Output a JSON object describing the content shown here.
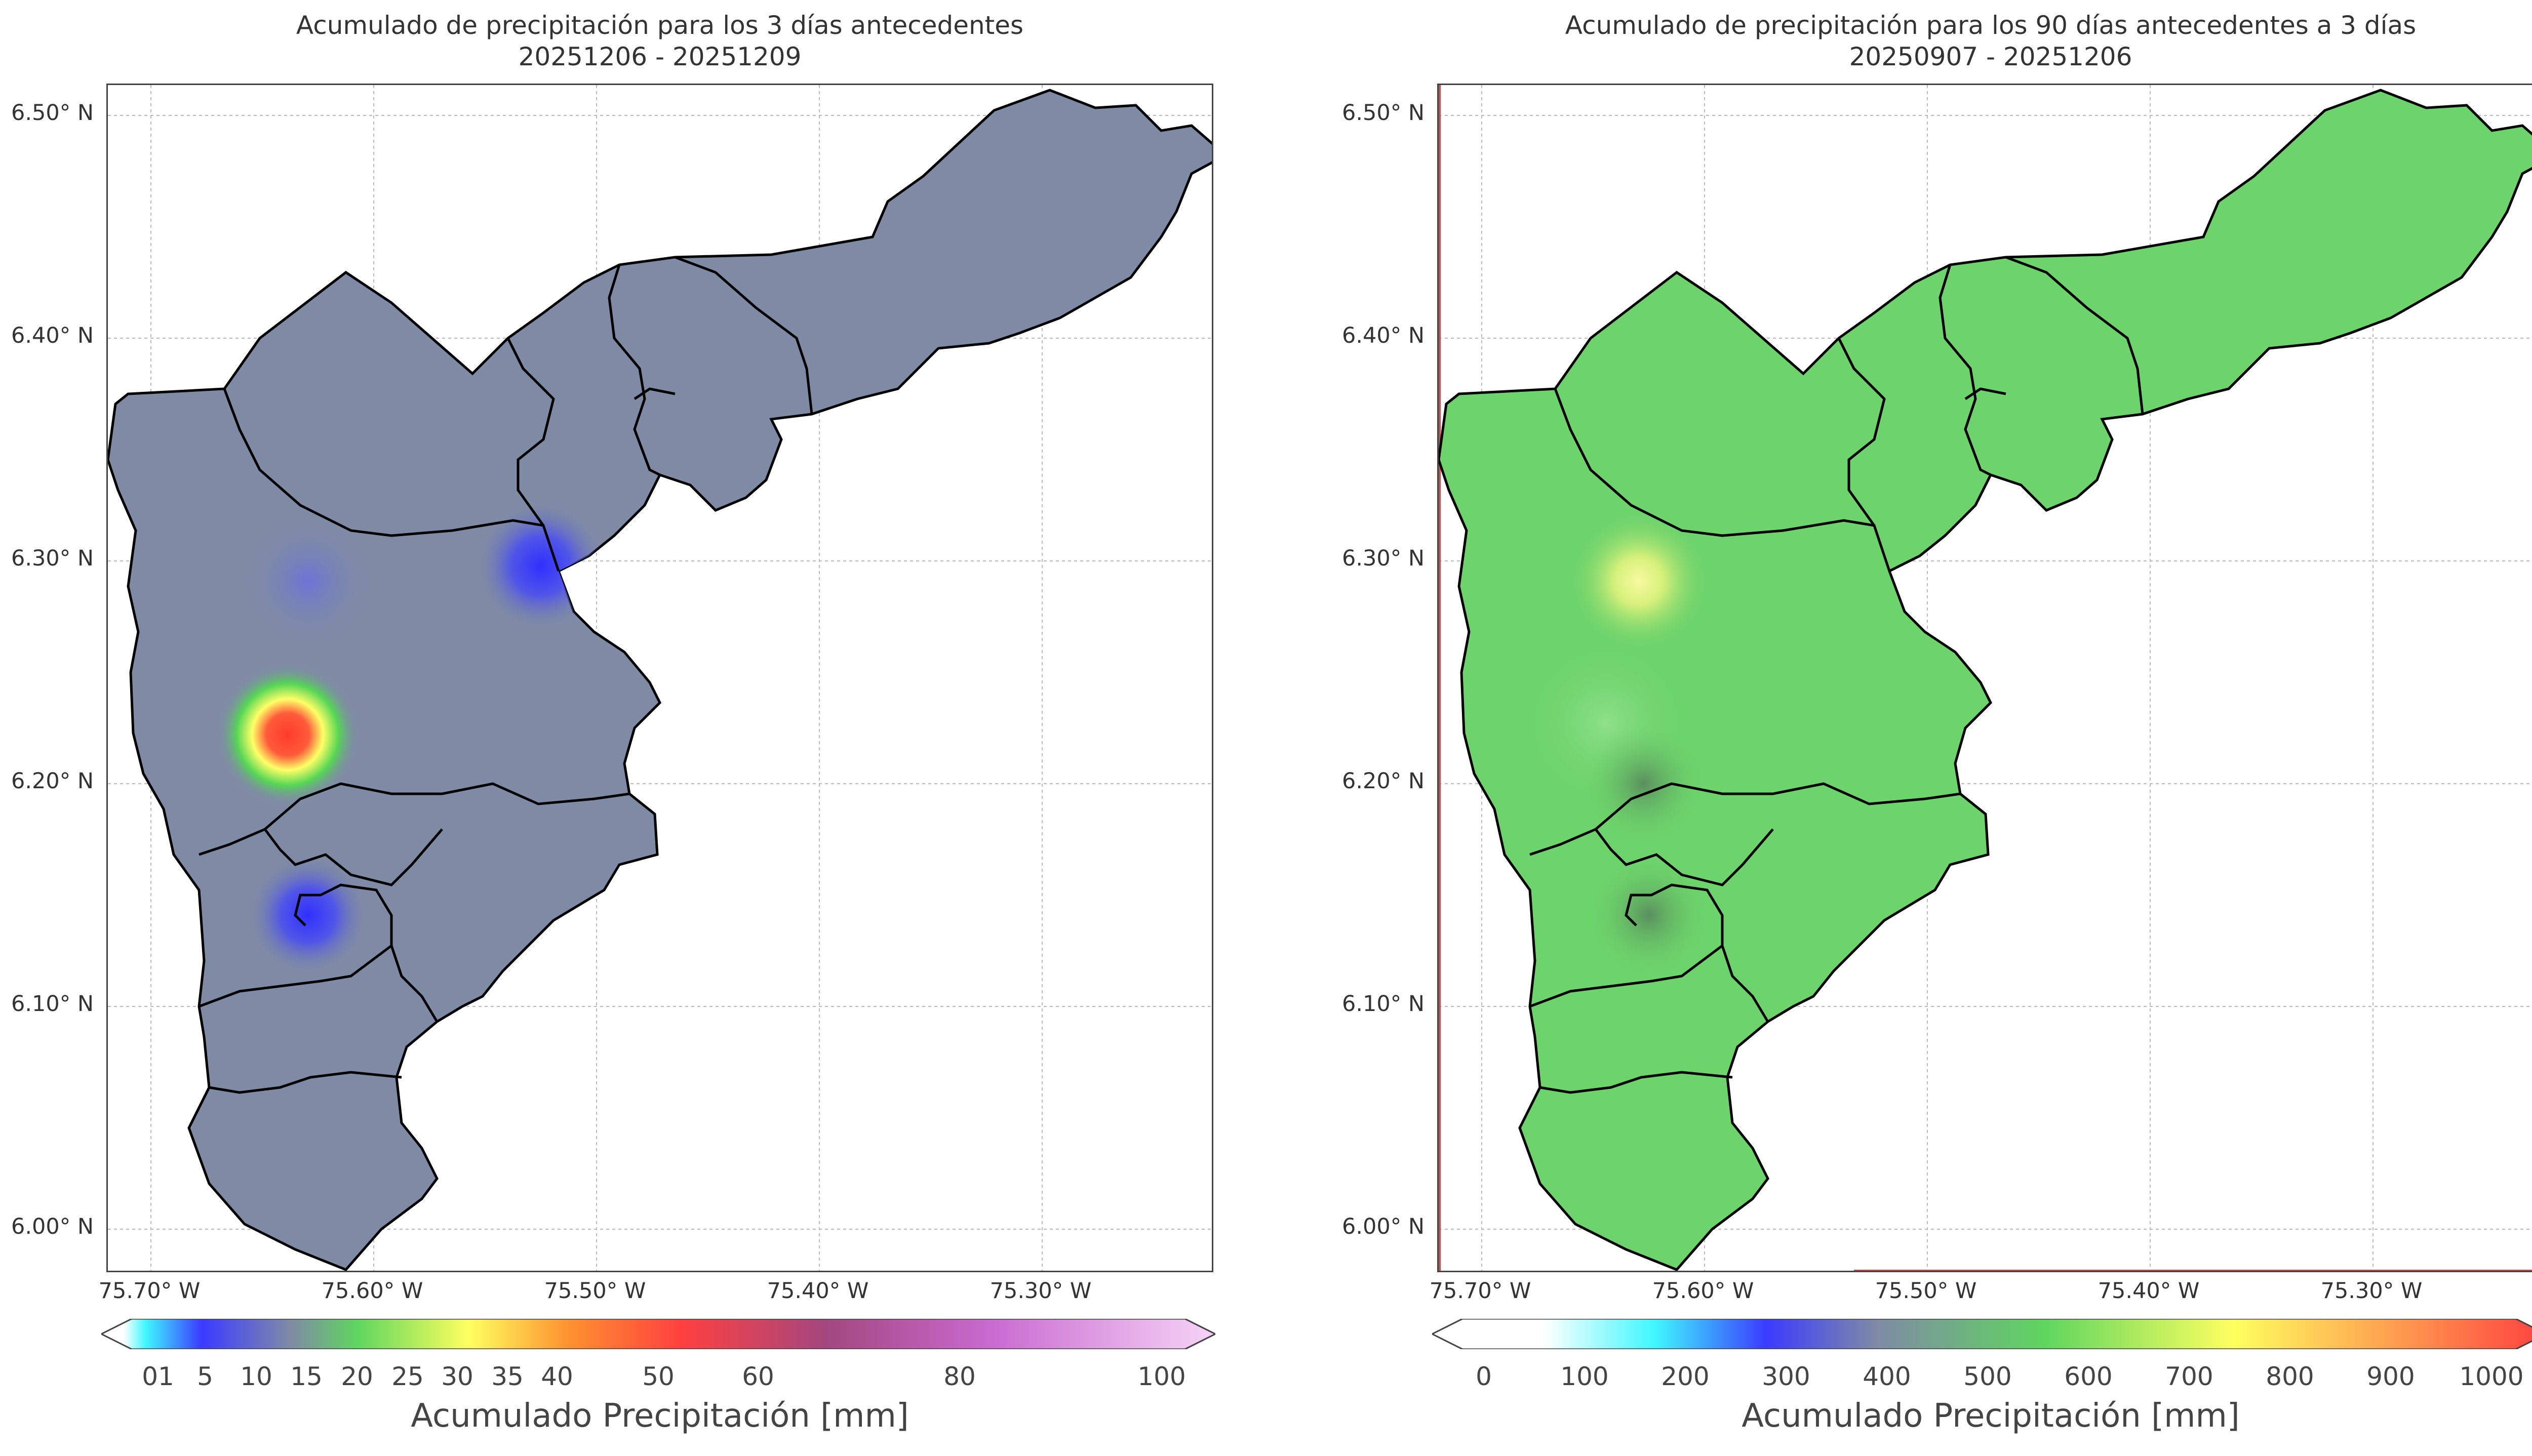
{
  "left_map": {
    "title_line1": "Acumulado de precipitación para los 3 días antecedentes",
    "title_line2": "20251206 - 20251209",
    "fill_color": "#7f8ba5",
    "y_ticks": [
      "6.50° N",
      "6.40° N",
      "6.30° N",
      "6.20° N",
      "6.10° N",
      "6.00° N"
    ],
    "x_ticks": [
      "75.70° W",
      "75.60° W",
      "75.50° W",
      "75.40° W",
      "75.30° W"
    ],
    "colorbar": {
      "label": "Acumulado Precipitación [mm]",
      "ticks": [
        "01",
        "5",
        "10",
        "15",
        "20",
        "25",
        "30",
        "35",
        "40",
        "50",
        "60",
        "80",
        "100"
      ],
      "colors": [
        "#ffffff",
        "#3ff7ff",
        "#3b3bff",
        "#7f8ba5",
        "#5fd65f",
        "#ffff60",
        "#ff9030",
        "#ff4040",
        "#a3477f",
        "#c96bd1",
        "#f6d4f6"
      ]
    }
  },
  "right_map": {
    "title_line1": "Acumulado de precipitación para los 90 días antecedentes a 3 días",
    "title_line2": "20250907 - 20251206",
    "fill_color": "#6dd36b",
    "y_ticks": [
      "6.50° N",
      "6.40° N",
      "6.30° N",
      "6.20° N",
      "6.10° N",
      "6.00° N"
    ],
    "x_ticks": [
      "75.70° W",
      "75.60° W",
      "75.50° W",
      "75.40° W",
      "75.30° W"
    ],
    "colorbar": {
      "label": "Acumulado Precipitación [mm]",
      "ticks": [
        "0",
        "100",
        "200",
        "300",
        "400",
        "500",
        "600",
        "700",
        "800",
        "900",
        "1000"
      ],
      "colors": [
        "#ffffff",
        "#3ff7ff",
        "#3b3bff",
        "#7f8ba5",
        "#5fd65f",
        "#ffff60",
        "#ff4040"
      ]
    }
  }
}
